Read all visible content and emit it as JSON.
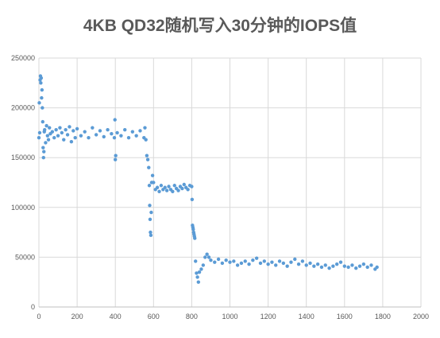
{
  "chart_data": {
    "type": "scatter",
    "title": "4KB QD32随机写入30分钟的IOPS值",
    "xlabel": "",
    "ylabel": "",
    "xlim": [
      0,
      2000
    ],
    "ylim": [
      0,
      250000
    ],
    "x_ticks": [
      0,
      200,
      400,
      600,
      800,
      1000,
      1200,
      1400,
      1600,
      1800,
      2000
    ],
    "y_ticks": [
      0,
      50000,
      100000,
      150000,
      200000,
      250000
    ],
    "x_tick_labels": [
      "0",
      "200",
      "400",
      "600",
      "800",
      "1000",
      "1200",
      "1400",
      "1600",
      "1800",
      "2000"
    ],
    "y_tick_labels": [
      "0",
      "50000",
      "100000",
      "150000",
      "200000",
      "250000"
    ],
    "grid": true,
    "legend": "none",
    "marker_color": "#5B9BD5",
    "grid_color": "#D9D9D9",
    "series": [
      {
        "points": [
          [
            0,
            170000
          ],
          [
            2,
            205000
          ],
          [
            4,
            175000
          ],
          [
            6,
            228000
          ],
          [
            8,
            232000
          ],
          [
            10,
            225000
          ],
          [
            12,
            230000
          ],
          [
            14,
            210000
          ],
          [
            16,
            218000
          ],
          [
            18,
            200000
          ],
          [
            20,
            186000
          ],
          [
            22,
            160000
          ],
          [
            24,
            150000
          ],
          [
            26,
            156000
          ],
          [
            28,
            176000
          ],
          [
            30,
            178000
          ],
          [
            35,
            165000
          ],
          [
            40,
            182000
          ],
          [
            45,
            172000
          ],
          [
            50,
            168000
          ],
          [
            55,
            180000
          ],
          [
            60,
            174000
          ],
          [
            70,
            176000
          ],
          [
            80,
            170000
          ],
          [
            90,
            178000
          ],
          [
            100,
            172000
          ],
          [
            110,
            180000
          ],
          [
            120,
            175000
          ],
          [
            130,
            168000
          ],
          [
            140,
            178000
          ],
          [
            150,
            173000
          ],
          [
            160,
            181000
          ],
          [
            170,
            166000
          ],
          [
            180,
            177000
          ],
          [
            190,
            170000
          ],
          [
            200,
            179000
          ],
          [
            220,
            172000
          ],
          [
            240,
            176000
          ],
          [
            260,
            170000
          ],
          [
            280,
            180000
          ],
          [
            300,
            173000
          ],
          [
            320,
            177000
          ],
          [
            340,
            171000
          ],
          [
            360,
            178000
          ],
          [
            380,
            174000
          ],
          [
            395,
            170000
          ],
          [
            398,
            188000
          ],
          [
            400,
            148000
          ],
          [
            402,
            152000
          ],
          [
            410,
            175000
          ],
          [
            430,
            172000
          ],
          [
            450,
            178000
          ],
          [
            470,
            170000
          ],
          [
            490,
            176000
          ],
          [
            510,
            172000
          ],
          [
            530,
            177000
          ],
          [
            550,
            170000
          ],
          [
            555,
            180000
          ],
          [
            560,
            168000
          ],
          [
            565,
            152000
          ],
          [
            570,
            148000
          ],
          [
            575,
            140000
          ],
          [
            578,
            122000
          ],
          [
            580,
            102000
          ],
          [
            582,
            88000
          ],
          [
            584,
            75000
          ],
          [
            586,
            72000
          ],
          [
            588,
            95000
          ],
          [
            590,
            125000
          ],
          [
            595,
            132000
          ],
          [
            600,
            125000
          ],
          [
            610,
            118000
          ],
          [
            620,
            120000
          ],
          [
            630,
            116000
          ],
          [
            640,
            122000
          ],
          [
            650,
            118000
          ],
          [
            660,
            120000
          ],
          [
            670,
            117000
          ],
          [
            680,
            121000
          ],
          [
            690,
            118000
          ],
          [
            700,
            116000
          ],
          [
            710,
            122000
          ],
          [
            720,
            119000
          ],
          [
            730,
            117000
          ],
          [
            740,
            121000
          ],
          [
            750,
            119000
          ],
          [
            760,
            123000
          ],
          [
            770,
            120000
          ],
          [
            780,
            118000
          ],
          [
            790,
            122000
          ],
          [
            800,
            121000
          ],
          [
            802,
            108000
          ],
          [
            804,
            82000
          ],
          [
            806,
            80000
          ],
          [
            808,
            78000
          ],
          [
            810,
            75000
          ],
          [
            812,
            73000
          ],
          [
            814,
            71000
          ],
          [
            816,
            69000
          ],
          [
            820,
            46000
          ],
          [
            825,
            34000
          ],
          [
            830,
            30000
          ],
          [
            835,
            25000
          ],
          [
            840,
            35000
          ],
          [
            850,
            38000
          ],
          [
            860,
            42000
          ],
          [
            870,
            50000
          ],
          [
            880,
            53000
          ],
          [
            890,
            50000
          ],
          [
            900,
            47000
          ],
          [
            920,
            45000
          ],
          [
            940,
            48000
          ],
          [
            960,
            44000
          ],
          [
            980,
            47000
          ],
          [
            1000,
            45000
          ],
          [
            1020,
            46000
          ],
          [
            1040,
            42000
          ],
          [
            1060,
            44000
          ],
          [
            1080,
            46000
          ],
          [
            1100,
            43000
          ],
          [
            1120,
            47000
          ],
          [
            1140,
            49000
          ],
          [
            1160,
            44000
          ],
          [
            1180,
            46000
          ],
          [
            1200,
            43000
          ],
          [
            1220,
            45000
          ],
          [
            1240,
            42000
          ],
          [
            1260,
            46000
          ],
          [
            1280,
            44000
          ],
          [
            1300,
            41000
          ],
          [
            1320,
            45000
          ],
          [
            1340,
            48000
          ],
          [
            1360,
            43000
          ],
          [
            1380,
            46000
          ],
          [
            1400,
            42000
          ],
          [
            1420,
            44000
          ],
          [
            1440,
            41000
          ],
          [
            1460,
            43000
          ],
          [
            1480,
            40000
          ],
          [
            1500,
            42000
          ],
          [
            1520,
            39000
          ],
          [
            1540,
            41000
          ],
          [
            1560,
            43000
          ],
          [
            1580,
            45000
          ],
          [
            1600,
            41000
          ],
          [
            1620,
            40000
          ],
          [
            1640,
            42000
          ],
          [
            1660,
            39000
          ],
          [
            1680,
            41000
          ],
          [
            1700,
            43000
          ],
          [
            1720,
            40000
          ],
          [
            1740,
            42000
          ],
          [
            1760,
            38000
          ],
          [
            1770,
            40000
          ]
        ]
      }
    ]
  }
}
